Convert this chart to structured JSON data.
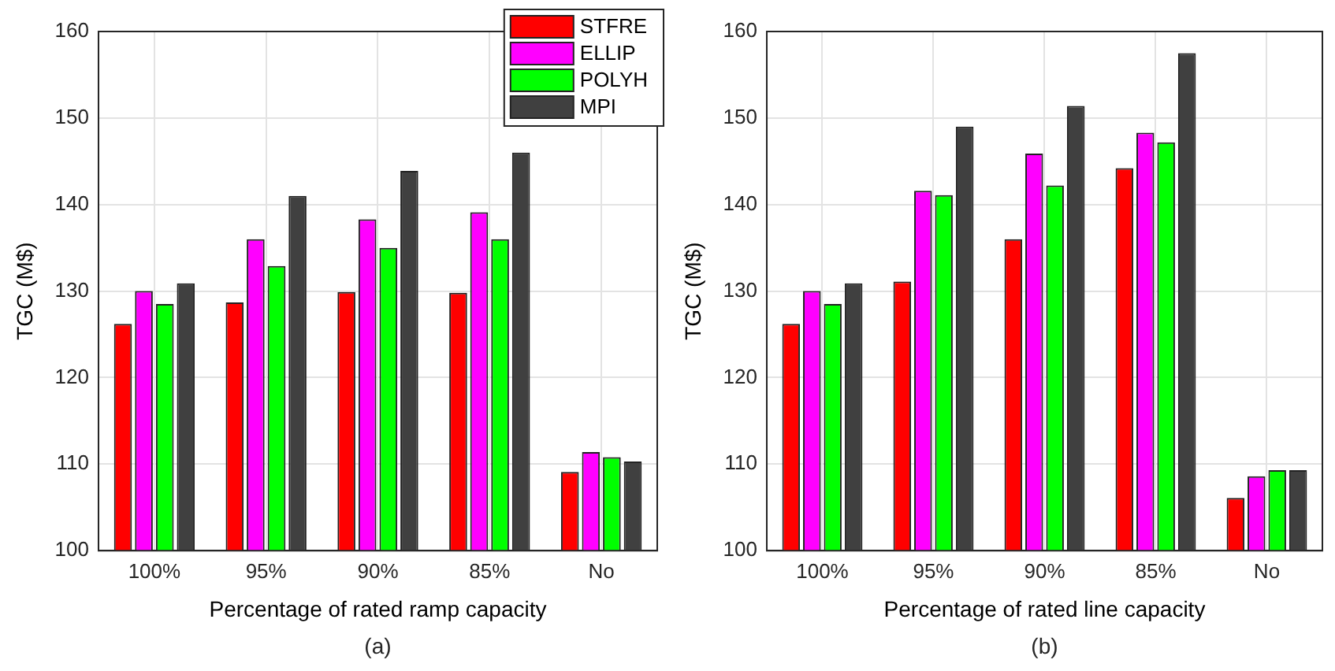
{
  "chart_data": [
    {
      "type": "bar",
      "xlabel": "Percentage of rated ramp capacity",
      "ylabel": "TGC (M$)",
      "annotations": [
        "(a)"
      ],
      "categories": [
        "100%",
        "95%",
        "90%",
        "85%",
        "No"
      ],
      "ylim": [
        100,
        160
      ],
      "yticks": [
        100,
        110,
        120,
        130,
        140,
        150,
        160
      ],
      "grid": true,
      "legend": "top right",
      "series": [
        {
          "name": "STFRE",
          "color": "#ff0000",
          "values": [
            126.2,
            128.7,
            129.9,
            129.8,
            109.1
          ]
        },
        {
          "name": "ELLIP",
          "color": "#ff00ff",
          "values": [
            130.0,
            136.0,
            138.3,
            139.1,
            111.4
          ]
        },
        {
          "name": "POLYH",
          "color": "#00ff00",
          "values": [
            128.5,
            132.9,
            135.0,
            136.0,
            110.8
          ]
        },
        {
          "name": "MPI",
          "color": "#404040",
          "values": [
            130.9,
            141.0,
            143.9,
            146.0,
            110.3
          ]
        }
      ]
    },
    {
      "type": "bar",
      "xlabel": "Percentage of rated line capacity",
      "ylabel": "TGC (M$)",
      "annotations": [
        "(b)"
      ],
      "categories": [
        "100%",
        "95%",
        "90%",
        "85%",
        "No"
      ],
      "ylim": [
        100,
        160
      ],
      "yticks": [
        100,
        110,
        120,
        130,
        140,
        150,
        160
      ],
      "grid": true,
      "series": [
        {
          "color": "#ff0000",
          "values": [
            126.2,
            131.1,
            136.0,
            144.2,
            106.1
          ]
        },
        {
          "color": "#ff00ff",
          "values": [
            130.0,
            141.6,
            145.9,
            148.3,
            108.6
          ]
        },
        {
          "color": "#00ff00",
          "values": [
            128.5,
            141.1,
            142.2,
            147.2,
            109.3
          ]
        },
        {
          "color": "#404040",
          "values": [
            130.9,
            149.0,
            151.4,
            157.5,
            109.3
          ]
        }
      ]
    }
  ]
}
